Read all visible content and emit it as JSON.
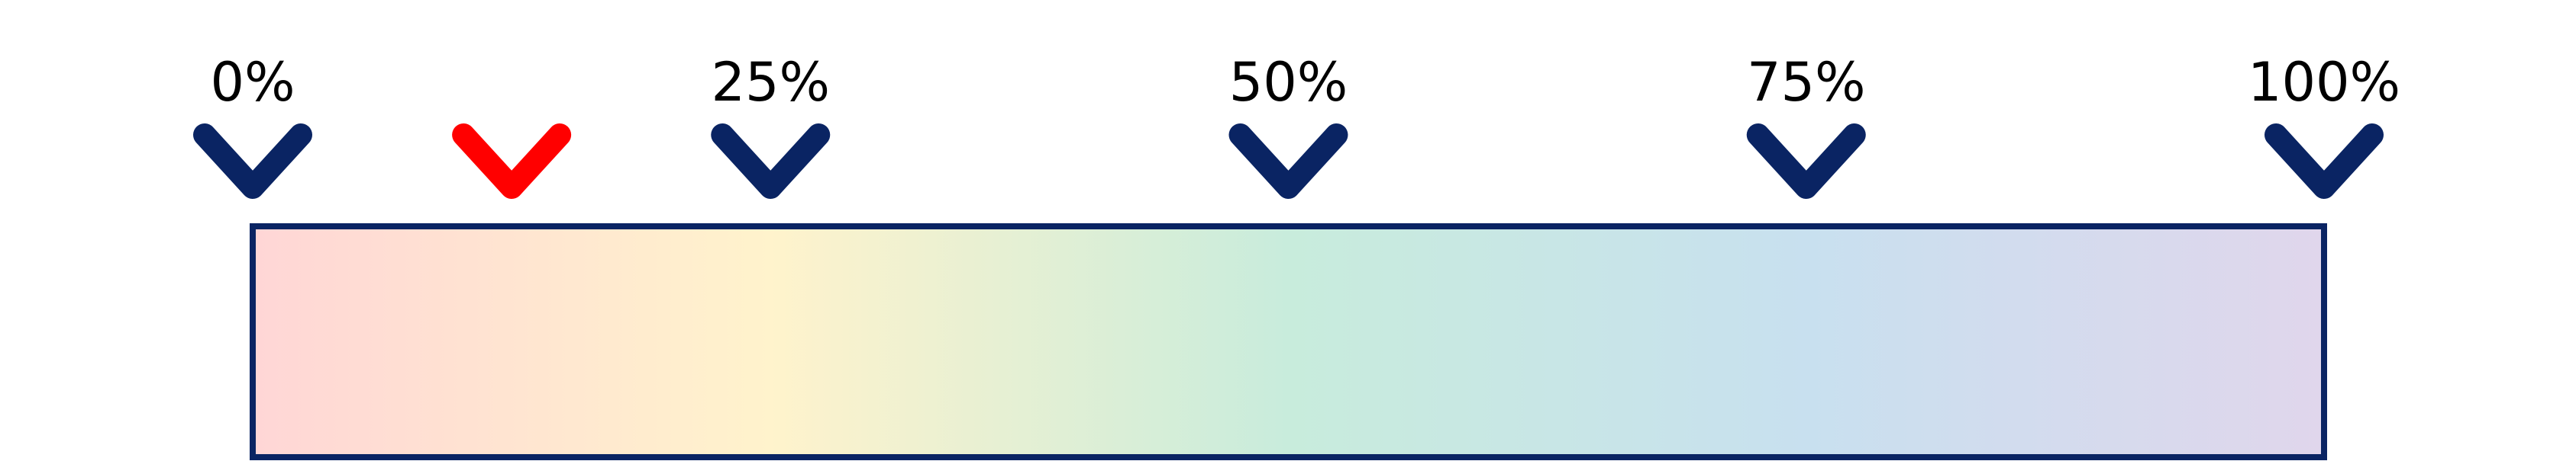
{
  "scale": {
    "ticks": [
      {
        "label": "0%",
        "value": 0
      },
      {
        "label": "25%",
        "value": 25
      },
      {
        "label": "50%",
        "value": 50
      },
      {
        "label": "75%",
        "value": 75
      },
      {
        "label": "100%",
        "value": 100
      }
    ],
    "marker": {
      "value": 12.5,
      "color": "#ff0000"
    },
    "tick_color": "#0a2463",
    "bar_border_color": "#0a2463",
    "gradient_stops": [
      {
        "offset": 0,
        "color": "#ffd6d6"
      },
      {
        "offset": 0.25,
        "color": "#fff3cc"
      },
      {
        "offset": 0.5,
        "color": "#c8ecdc"
      },
      {
        "offset": 0.75,
        "color": "#c8e0ef"
      },
      {
        "offset": 1,
        "color": "#e0d6ec"
      }
    ]
  }
}
